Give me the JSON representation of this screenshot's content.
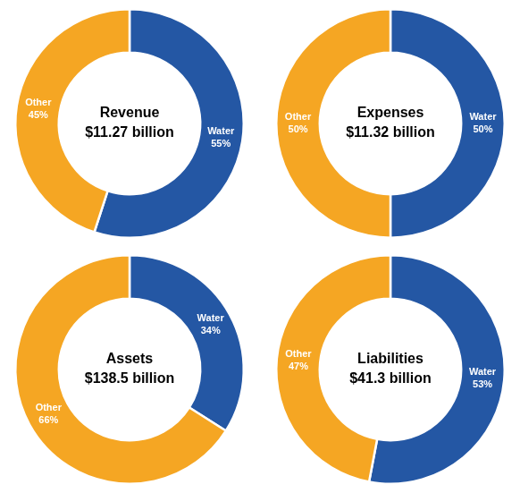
{
  "chart_data": [
    {
      "type": "doughnut",
      "title": "Revenue",
      "subtitle": "$11.27 billion",
      "categories": [
        "Water",
        "Other"
      ],
      "values": [
        55,
        45
      ],
      "value_labels": [
        "55%",
        "45%"
      ],
      "colors": [
        "#2457A4",
        "#F5A623"
      ],
      "data_labels": true,
      "legend": false
    },
    {
      "type": "doughnut",
      "title": "Expenses",
      "subtitle": "$11.32 billion",
      "categories": [
        "Water",
        "Other"
      ],
      "values": [
        50,
        50
      ],
      "value_labels": [
        "50%",
        "50%"
      ],
      "colors": [
        "#2457A4",
        "#F5A623"
      ],
      "data_labels": true,
      "legend": false
    },
    {
      "type": "doughnut",
      "title": "Assets",
      "subtitle": "$138.5 billion",
      "categories": [
        "Water",
        "Other"
      ],
      "values": [
        34,
        66
      ],
      "value_labels": [
        "34%",
        "66%"
      ],
      "colors": [
        "#2457A4",
        "#F5A623"
      ],
      "data_labels": true,
      "legend": false
    },
    {
      "type": "doughnut",
      "title": "Liabilities",
      "subtitle": "$41.3 billion",
      "categories": [
        "Water",
        "Other"
      ],
      "values": [
        53,
        47
      ],
      "value_labels": [
        "53%",
        "47%"
      ],
      "colors": [
        "#2457A4",
        "#F5A623"
      ],
      "data_labels": true,
      "legend": false
    }
  ]
}
